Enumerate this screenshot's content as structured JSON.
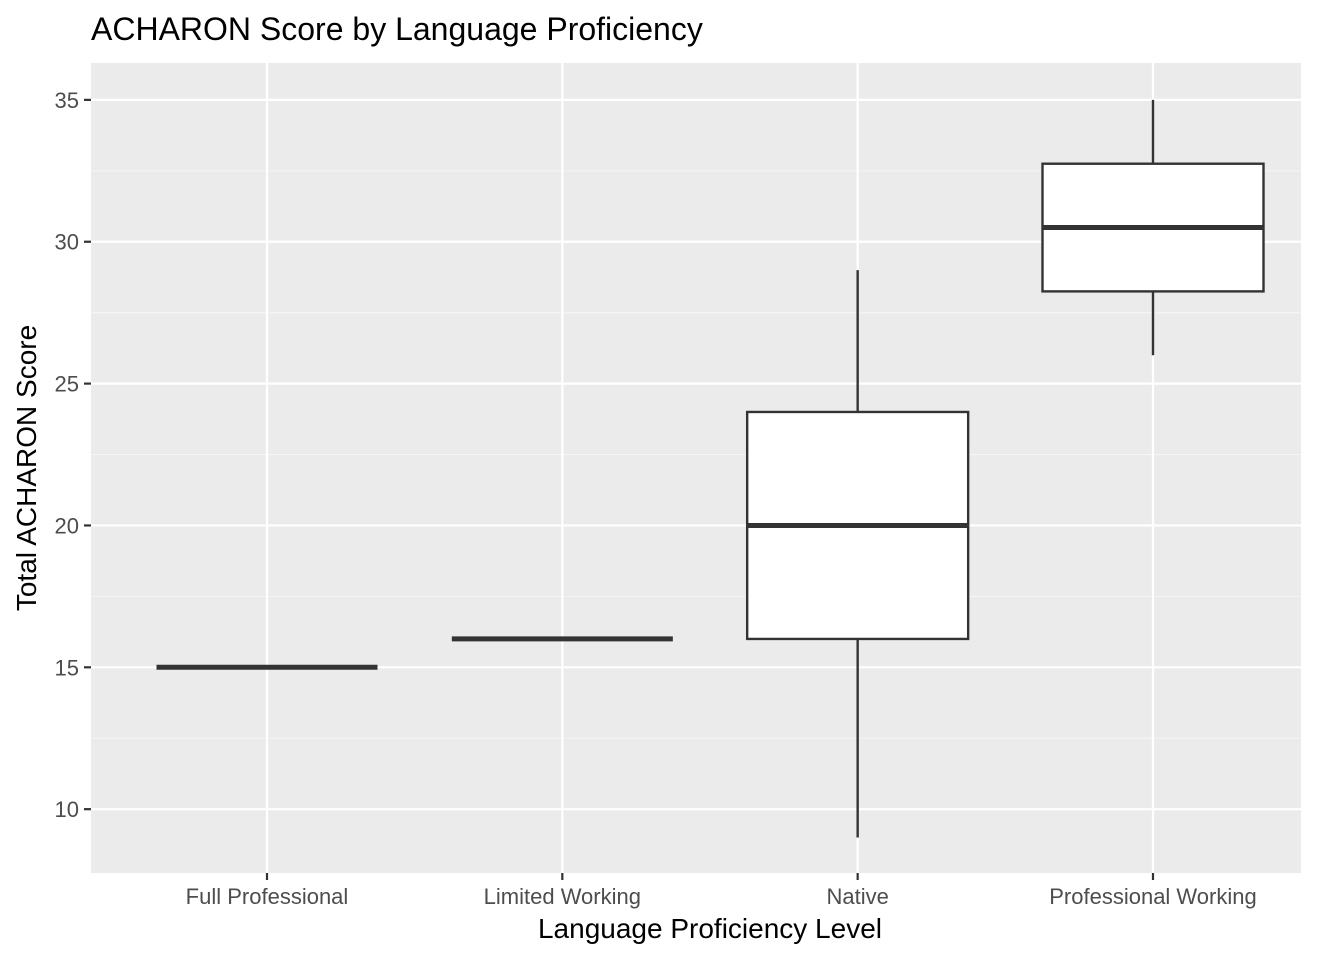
{
  "chart_data": {
    "type": "box",
    "title": "ACHARON Score by Language Proficiency",
    "xlabel": "Language Proficiency Level",
    "ylabel": "Total ACHARON Score",
    "categories": [
      "Full Professional",
      "Limited Working",
      "Native",
      "Professional Working"
    ],
    "boxes": [
      {
        "category": "Full Professional",
        "min": 15,
        "q1": 15,
        "median": 15,
        "q3": 15,
        "max": 15
      },
      {
        "category": "Limited Working",
        "min": 16,
        "q1": 16,
        "median": 16,
        "q3": 16,
        "max": 16
      },
      {
        "category": "Native",
        "min": 9,
        "q1": 16,
        "median": 20,
        "q3": 24,
        "max": 29
      },
      {
        "category": "Professional Working",
        "min": 26,
        "q1": 28.25,
        "median": 30.5,
        "q3": 32.75,
        "max": 35
      }
    ],
    "yticks": [
      10,
      15,
      20,
      25,
      30,
      35
    ],
    "ylim": [
      7.75,
      36.3
    ],
    "grid": true,
    "legend": "none",
    "colors": {
      "panel": "#ebebeb",
      "grid_major": "#ffffff",
      "grid_minor": "#f5f5f5",
      "box_fill": "#ffffff",
      "box_line": "#333333",
      "tick_label": "#4d4d4d",
      "tick_mark": "#333333"
    }
  }
}
